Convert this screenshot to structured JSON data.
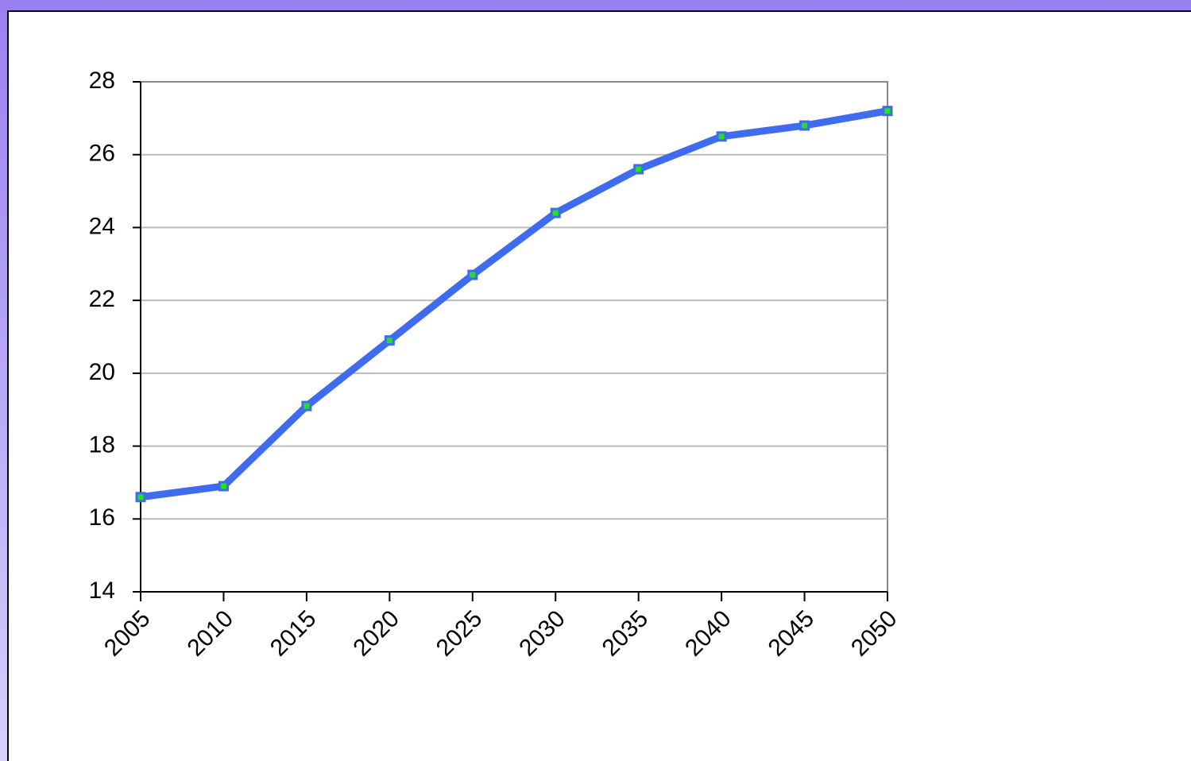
{
  "chart_data": {
    "type": "line",
    "x": [
      2005,
      2010,
      2015,
      2020,
      2025,
      2030,
      2035,
      2040,
      2045,
      2050
    ],
    "values": [
      16.6,
      16.9,
      19.1,
      20.9,
      22.7,
      24.4,
      25.6,
      26.5,
      26.8,
      27.2
    ],
    "color": "#3f6bef",
    "marker_color": "#22e022",
    "xlim": [
      2005,
      2050
    ],
    "xticks": [
      2005,
      2010,
      2015,
      2020,
      2025,
      2030,
      2035,
      2040,
      2045,
      2050
    ],
    "ylim": [
      14,
      28
    ],
    "yticks": [
      14,
      16,
      18,
      20,
      22,
      24,
      26,
      28
    ],
    "grid": true
  }
}
